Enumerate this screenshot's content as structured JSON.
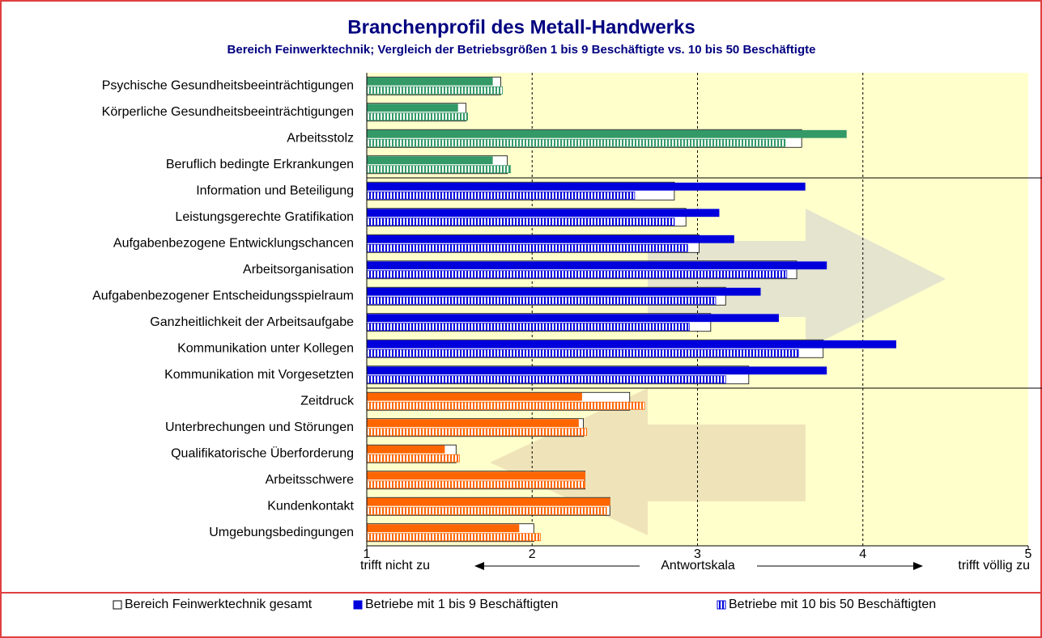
{
  "chart_data": {
    "type": "bar",
    "orientation": "horizontal",
    "title": "Branchenprofil des Metall-Handwerks",
    "subtitle": "Bereich Feinwerktechnik; Vergleich der Betriebsgrößen 1 bis 9 Beschäftigte vs. 10 bis 50 Beschäftigte",
    "categories": [
      "Psychische Gesundheitsbeeinträchtigungen",
      "Körperliche Gesundheitsbeeinträchtigungen",
      "Arbeitsstolz",
      "Beruflich bedingte Erkrankungen",
      "Information und Beteiligung",
      "Leistungsgerechte Gratifikation",
      "Aufgabenbezogene Entwicklungschancen",
      "Arbeitsorganisation",
      "Aufgabenbezogener Entscheidungsspielraum",
      "Ganzheitlichkeit der Arbeitsaufgabe",
      "Kommunikation unter Kollegen",
      "Kommunikation mit Vorgesetzten",
      "Zeitdruck",
      "Unterbrechungen und Störungen",
      "Qualifikatorische Überforderung",
      "Arbeitsschwere",
      "Kundenkontakt",
      "Umgebungsbedingungen"
    ],
    "category_colors": [
      "#339966",
      "#339966",
      "#339966",
      "#339966",
      "#0000dd",
      "#0000dd",
      "#0000dd",
      "#0000dd",
      "#0000dd",
      "#0000dd",
      "#0000dd",
      "#0000dd",
      "#ff6600",
      "#ff6600",
      "#ff6600",
      "#ff6600",
      "#ff6600",
      "#ff6600"
    ],
    "legend_color": "#0000dd",
    "series": [
      {
        "name": "Bereich Feinwerktechnik gesamt",
        "pattern": "empty",
        "color": "#ffffff",
        "values": [
          1.81,
          1.6,
          3.63,
          1.85,
          2.86,
          2.93,
          3.01,
          3.6,
          3.17,
          3.08,
          3.76,
          3.31,
          2.59,
          2.31,
          1.54,
          2.32,
          2.47,
          2.01
        ]
      },
      {
        "name": "Betriebe mit 1 bis 9 Beschäftigten",
        "pattern": "solid",
        "values": [
          1.76,
          1.55,
          3.9,
          1.76,
          3.65,
          3.13,
          3.22,
          3.78,
          3.38,
          3.49,
          4.2,
          3.78,
          2.3,
          2.28,
          1.47,
          2.32,
          2.47,
          1.92
        ]
      },
      {
        "name": "Betriebe mit 10 bis 50 Beschäftigten",
        "pattern": "striped",
        "values": [
          1.82,
          1.61,
          3.53,
          1.87,
          2.62,
          2.86,
          2.94,
          3.54,
          3.11,
          2.95,
          3.61,
          3.17,
          2.68,
          2.33,
          1.56,
          2.32,
          2.45,
          2.05
        ]
      }
    ],
    "xlim": [
      1,
      5
    ],
    "xticks": [
      1,
      2,
      3,
      4,
      5
    ],
    "grid": true,
    "annotations": [
      "trifft nicht zu",
      "Antwortskala",
      "trifft völlig zu"
    ]
  }
}
